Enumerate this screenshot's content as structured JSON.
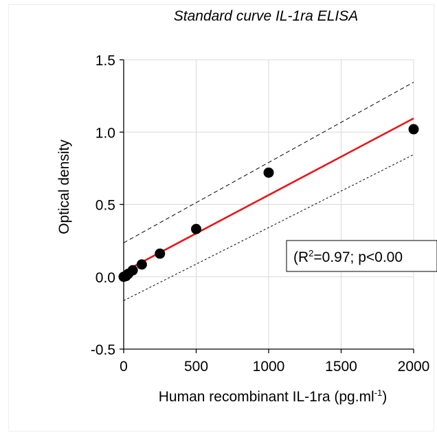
{
  "chart_data": {
    "type": "scatter",
    "title": "Standard curve IL-1ra ELISA",
    "xlabel": "Human recombinant IL-1ra (pg.ml",
    "xlabel_sup": "-1",
    "xlabel_close": ")",
    "ylabel": "Optical density",
    "xlim": [
      0,
      2000
    ],
    "ylim": [
      -0.5,
      1.5
    ],
    "xticks": [
      "0",
      "500",
      "1000",
      "1500",
      "2000"
    ],
    "yticks": [
      "-0.5",
      "0.0",
      "0.5",
      "1.0",
      "1.5"
    ],
    "grid": true,
    "points": {
      "x": [
        0,
        15.6,
        31.25,
        62.5,
        125,
        250,
        500,
        1000,
        2000
      ],
      "y": [
        0.0,
        0.005,
        0.02,
        0.045,
        0.085,
        0.16,
        0.33,
        0.72,
        1.02
      ]
    },
    "fit_line": {
      "x": [
        0,
        2000
      ],
      "y": [
        0.035,
        1.095
      ],
      "color": "#e8151b"
    },
    "upper_band": {
      "x": [
        0,
        2000
      ],
      "y": [
        0.235,
        1.345
      ]
    },
    "lower_band": {
      "x": [
        0,
        2000
      ],
      "y": [
        -0.165,
        0.845
      ]
    },
    "annotation": {
      "prefix": "(R",
      "sup": "2",
      "rest": "=0.97; p<0.00"
    }
  }
}
